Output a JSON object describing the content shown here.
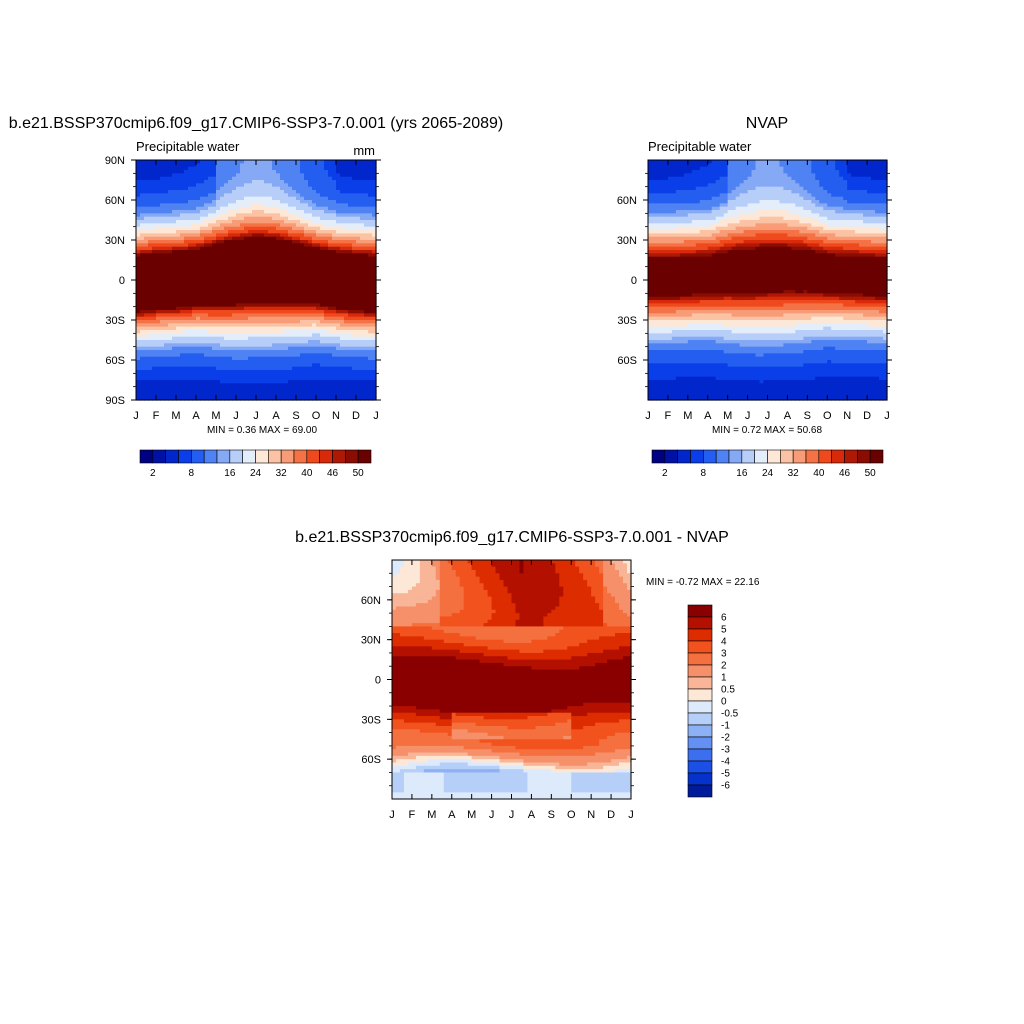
{
  "colors": {
    "abs_palette": [
      "#000082",
      "#0011a6",
      "#0026cc",
      "#0a3ee8",
      "#245ef0",
      "#4f82f3",
      "#86a9f5",
      "#b7cef8",
      "#e4eefb",
      "#fde8d8",
      "#fbc3a4",
      "#f89c77",
      "#f47245",
      "#ef4a1e",
      "#d82a0a",
      "#b01806",
      "#8a0c02",
      "#6b0000"
    ],
    "diff_palette": [
      "#8a0000",
      "#b31000",
      "#dd2c00",
      "#f2521d",
      "#f5703f",
      "#f6906a",
      "#f8b597",
      "#fde8d8",
      "#dceafb",
      "#b6cff8",
      "#8cb1f5",
      "#6390f2",
      "#3c6ff0",
      "#1b4fe6",
      "#0632cc",
      "#001a9c"
    ],
    "background": "#ffffff"
  },
  "chart_data": [
    {
      "type": "heatmap",
      "title": "b.e21.BSSP370cmip6.f09_g17.CMIP6-SSP3-7.0.001 (yrs 2065-2089)",
      "left_label": "Precipitable water",
      "right_label": "mm",
      "x_ticks": [
        "J",
        "F",
        "M",
        "A",
        "M",
        "J",
        "J",
        "A",
        "S",
        "O",
        "N",
        "D",
        "J"
      ],
      "y_ticks": [
        "90N",
        "60N",
        "30N",
        "0",
        "30S",
        "60S",
        "90S"
      ],
      "y_tick_values": [
        90,
        60,
        30,
        0,
        -30,
        -60,
        -90
      ],
      "ylim": [
        -90,
        90
      ],
      "stats": "MIN =   0.36 MAX =  69.00",
      "min": 0.36,
      "max": 69.0,
      "itcz_center_lat": [
        -3,
        -1,
        0,
        2,
        4,
        6,
        8,
        7,
        5,
        3,
        0,
        -2,
        -3
      ],
      "itcz_peak": 60,
      "colorbar_levels": [
        2,
        4,
        6,
        8,
        11,
        14,
        16,
        20,
        24,
        28,
        32,
        36,
        40,
        44,
        46,
        48,
        50
      ],
      "colorbar_labels": [
        "2",
        "8",
        "16",
        "24",
        "32",
        "40",
        "46",
        "50"
      ],
      "colorbar_label_index": [
        0,
        3,
        6,
        8,
        10,
        12,
        14,
        16
      ]
    },
    {
      "type": "heatmap",
      "title": "NVAP",
      "left_label": "Precipitable water",
      "right_label": "",
      "x_ticks": [
        "J",
        "F",
        "M",
        "A",
        "M",
        "J",
        "J",
        "A",
        "S",
        "O",
        "N",
        "D",
        "J"
      ],
      "y_ticks": [
        "60N",
        "30N",
        "0",
        "30S",
        "60S"
      ],
      "y_tick_values": [
        60,
        30,
        0,
        -30,
        -60
      ],
      "ylim": [
        -90,
        90
      ],
      "stats": "MIN =   0.72 MAX =  50.68",
      "min": 0.72,
      "max": 50.68,
      "itcz_center_lat": [
        2,
        2,
        3,
        4,
        6,
        7,
        8,
        8,
        7,
        5,
        4,
        3,
        2
      ],
      "itcz_peak": 48,
      "colorbar_levels": [
        2,
        4,
        6,
        8,
        11,
        14,
        16,
        20,
        24,
        28,
        32,
        36,
        40,
        44,
        46,
        48,
        50
      ],
      "colorbar_labels": [
        "2",
        "8",
        "16",
        "24",
        "32",
        "40",
        "46",
        "50"
      ],
      "colorbar_label_index": [
        0,
        3,
        6,
        8,
        10,
        12,
        14,
        16
      ]
    },
    {
      "type": "heatmap",
      "title": "b.e21.BSSP370cmip6.f09_g17.CMIP6-SSP3-7.0.001 - NVAP",
      "x_ticks": [
        "J",
        "F",
        "M",
        "A",
        "M",
        "J",
        "J",
        "A",
        "S",
        "O",
        "N",
        "D",
        "J"
      ],
      "y_ticks": [
        "60N",
        "30N",
        "0",
        "30S",
        "60S"
      ],
      "y_tick_values": [
        60,
        30,
        0,
        -30,
        -60
      ],
      "ylim": [
        -90,
        90
      ],
      "stats": "MIN =  -0.72 MAX =  22.16",
      "min": -0.72,
      "max": 22.16,
      "colorbar_levels": [
        6,
        5,
        4,
        3,
        2,
        1,
        0.5,
        0,
        -0.5,
        -1,
        -2,
        -3,
        -4,
        -5,
        -6
      ],
      "colorbar_labels": [
        "6",
        "5",
        "4",
        "3",
        "2",
        "1",
        "0.5",
        "0",
        "-0.5",
        "-1",
        "-2",
        "-3",
        "-4",
        "-5",
        "-6"
      ]
    }
  ]
}
